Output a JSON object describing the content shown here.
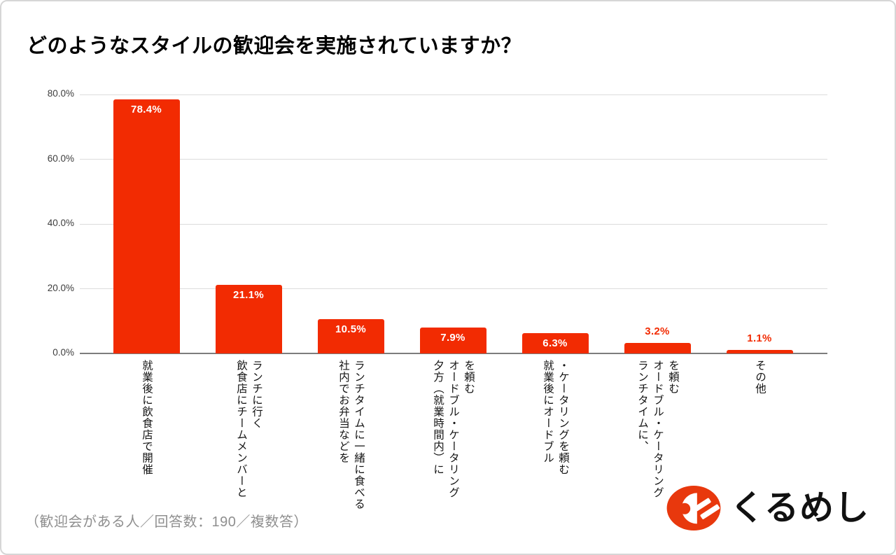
{
  "card": {
    "background": "#ffffff",
    "border_color": "#d6d6d6"
  },
  "header": {
    "title": "どのようなスタイルの歓迎会を実施されていますか？"
  },
  "chart_data": {
    "type": "bar",
    "title": "どのようなスタイルの歓迎会を実施されていますか？",
    "categories": [
      "就業後に飲食店で開催",
      "飲食店にチームメンバーとランチに行く",
      "社内でお弁当などをランチタイムに一緒に食べる",
      "夕方（就業時間内）にオードブル・ケータリングを頼む",
      "就業後にオードブル・ケータリングを頼む",
      "ランチタイムに、オードブル・ケータリングを頼む",
      "その他"
    ],
    "category_lines": [
      [
        "就業後に飲食店で開催"
      ],
      [
        "飲食店にチームメンバーと",
        "ランチに行く"
      ],
      [
        "社内でお弁当などを",
        "ランチタイムに一緒に食べる"
      ],
      [
        "夕方（就業時間内）に",
        "オードブル・ケータリング",
        "を頼む"
      ],
      [
        "就業後にオードブル",
        "・ケータリングを頼む"
      ],
      [
        "ランチタイムに、",
        "オードブル・ケータリング",
        "を頼む"
      ],
      [
        "その他"
      ]
    ],
    "values": [
      78.4,
      21.1,
      10.5,
      7.9,
      6.3,
      3.2,
      1.1
    ],
    "value_labels": [
      "78.4%",
      "21.1%",
      "10.5%",
      "7.9%",
      "6.3%",
      "3.2%",
      "1.1%"
    ],
    "yticks": [
      {
        "value": 0,
        "label": "0.0%"
      },
      {
        "value": 20,
        "label": "20.0%"
      },
      {
        "value": 40,
        "label": "40.0%"
      },
      {
        "value": 60,
        "label": "60.0%"
      },
      {
        "value": 80,
        "label": "80.0%"
      }
    ],
    "ylim": [
      0,
      80
    ],
    "xlabel": "",
    "ylabel": "",
    "grid": true,
    "legend": false,
    "bar_color": "#f22b02",
    "value_label_inside_color": "#ffffff",
    "value_label_outside_color": "#f22b02",
    "gridline_color": "#dcdcdc",
    "axis_line_color": "#7d7d7d"
  },
  "footer": {
    "note": "（歓迎会がある人／回答数：190／複数答）"
  },
  "logo": {
    "text": "くるめし",
    "icon": "kurumeshi-fish-logo-icon",
    "color": "#e8380d",
    "text_color": "#111111"
  }
}
